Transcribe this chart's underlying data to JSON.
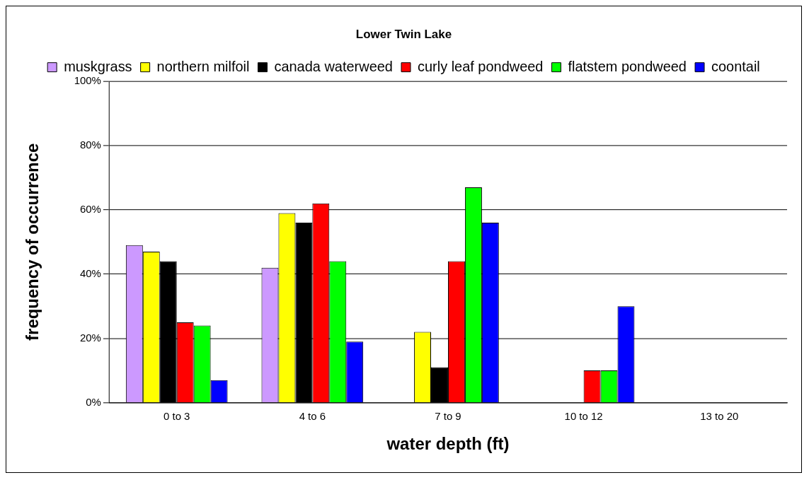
{
  "chart_data": {
    "type": "bar",
    "title": "Lower Twin Lake",
    "xlabel": "water depth (ft)",
    "ylabel": "frequency of occurrence",
    "categories": [
      "0 to 3",
      "4 to 6",
      "7 to 9",
      "10 to 12",
      "13 to 20"
    ],
    "series": [
      {
        "name": "muskgrass",
        "color": "#cc99ff",
        "values": [
          49,
          42,
          0,
          0,
          0
        ]
      },
      {
        "name": "northern milfoil",
        "color": "#ffff00",
        "values": [
          47,
          59,
          22,
          0,
          0
        ]
      },
      {
        "name": "canada waterweed",
        "color": "#000000",
        "values": [
          44,
          56,
          11,
          0,
          0
        ]
      },
      {
        "name": "curly leaf pondweed",
        "color": "#ff0000",
        "values": [
          25,
          62,
          44,
          10,
          0
        ]
      },
      {
        "name": "flatstem pondweed",
        "color": "#00ff00",
        "values": [
          24,
          44,
          67,
          10,
          0
        ]
      },
      {
        "name": "coontail",
        "color": "#0000ff",
        "values": [
          7,
          19,
          56,
          30,
          0
        ]
      }
    ],
    "ylim": [
      0,
      100
    ],
    "yticks": [
      {
        "value": 0,
        "label": "0%"
      },
      {
        "value": 20,
        "label": "20%"
      },
      {
        "value": 40,
        "label": "40%"
      },
      {
        "value": 60,
        "label": "60%"
      },
      {
        "value": 80,
        "label": "80%"
      },
      {
        "value": 100,
        "label": "100%"
      }
    ],
    "grid": "y",
    "legend": "top"
  }
}
